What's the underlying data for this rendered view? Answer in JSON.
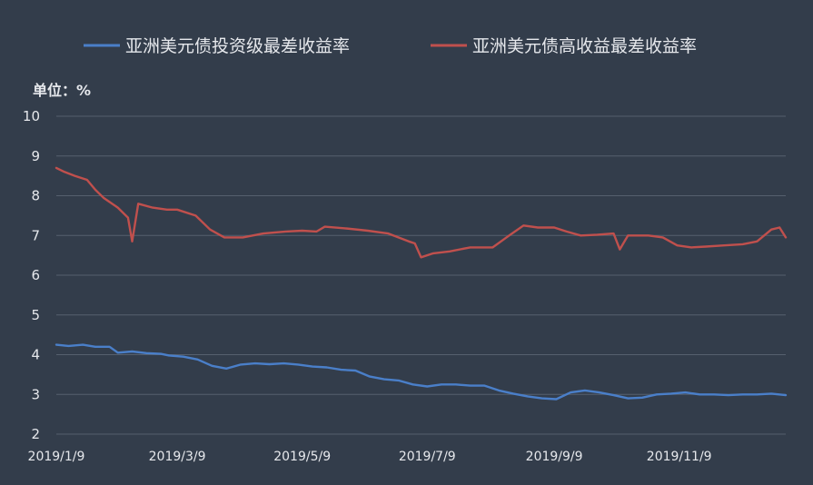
{
  "chart_data": {
    "type": "line",
    "unit_label": "单位：%",
    "ylim": [
      2,
      10
    ],
    "y_ticks": [
      2,
      3,
      4,
      5,
      6,
      7,
      8,
      9,
      10
    ],
    "x_range": [
      "2019-01-09",
      "2019-12-31"
    ],
    "x_ticks": [
      {
        "date": "2019-01-09",
        "label": "2019/1/9"
      },
      {
        "date": "2019-03-09",
        "label": "2019/3/9"
      },
      {
        "date": "2019-05-09",
        "label": "2019/5/9"
      },
      {
        "date": "2019-07-09",
        "label": "2019/7/9"
      },
      {
        "date": "2019-09-09",
        "label": "2019/9/9"
      },
      {
        "date": "2019-11-09",
        "label": "2019/11/9"
      }
    ],
    "grid": true,
    "legend_position": "top",
    "series": [
      {
        "name": "亚洲美元债投资级最差收益率",
        "color": "#4a7fc9",
        "points": [
          [
            "2019-01-09",
            4.25
          ],
          [
            "2019-01-15",
            4.22
          ],
          [
            "2019-01-22",
            4.25
          ],
          [
            "2019-01-28",
            4.2
          ],
          [
            "2019-02-04",
            4.2
          ],
          [
            "2019-02-08",
            4.05
          ],
          [
            "2019-02-15",
            4.08
          ],
          [
            "2019-02-22",
            4.04
          ],
          [
            "2019-03-01",
            4.02
          ],
          [
            "2019-03-05",
            3.98
          ],
          [
            "2019-03-12",
            3.95
          ],
          [
            "2019-03-19",
            3.88
          ],
          [
            "2019-03-26",
            3.72
          ],
          [
            "2019-04-02",
            3.65
          ],
          [
            "2019-04-09",
            3.75
          ],
          [
            "2019-04-16",
            3.78
          ],
          [
            "2019-04-23",
            3.76
          ],
          [
            "2019-04-30",
            3.78
          ],
          [
            "2019-05-07",
            3.75
          ],
          [
            "2019-05-14",
            3.7
          ],
          [
            "2019-05-21",
            3.68
          ],
          [
            "2019-05-28",
            3.62
          ],
          [
            "2019-06-04",
            3.6
          ],
          [
            "2019-06-11",
            3.45
          ],
          [
            "2019-06-18",
            3.38
          ],
          [
            "2019-06-25",
            3.35
          ],
          [
            "2019-07-02",
            3.25
          ],
          [
            "2019-07-09",
            3.2
          ],
          [
            "2019-07-16",
            3.25
          ],
          [
            "2019-07-23",
            3.25
          ],
          [
            "2019-07-30",
            3.22
          ],
          [
            "2019-08-06",
            3.22
          ],
          [
            "2019-08-13",
            3.1
          ],
          [
            "2019-08-20",
            3.02
          ],
          [
            "2019-08-27",
            2.95
          ],
          [
            "2019-09-03",
            2.9
          ],
          [
            "2019-09-10",
            2.88
          ],
          [
            "2019-09-17",
            3.05
          ],
          [
            "2019-09-24",
            3.1
          ],
          [
            "2019-10-01",
            3.05
          ],
          [
            "2019-10-08",
            2.98
          ],
          [
            "2019-10-15",
            2.9
          ],
          [
            "2019-10-22",
            2.92
          ],
          [
            "2019-10-29",
            3.0
          ],
          [
            "2019-11-05",
            3.02
          ],
          [
            "2019-11-12",
            3.05
          ],
          [
            "2019-11-19",
            3.0
          ],
          [
            "2019-11-26",
            3.0
          ],
          [
            "2019-12-03",
            2.98
          ],
          [
            "2019-12-10",
            3.0
          ],
          [
            "2019-12-17",
            3.0
          ],
          [
            "2019-12-24",
            3.02
          ],
          [
            "2019-12-31",
            2.98
          ]
        ]
      },
      {
        "name": "亚洲美元债高收益最差收益率",
        "color": "#c0504d",
        "points": [
          [
            "2019-01-09",
            8.7
          ],
          [
            "2019-01-13",
            8.6
          ],
          [
            "2019-01-18",
            8.5
          ],
          [
            "2019-01-24",
            8.4
          ],
          [
            "2019-01-28",
            8.15
          ],
          [
            "2019-02-01",
            7.95
          ],
          [
            "2019-02-08",
            7.7
          ],
          [
            "2019-02-13",
            7.45
          ],
          [
            "2019-02-15",
            6.85
          ],
          [
            "2019-02-18",
            7.8
          ],
          [
            "2019-02-25",
            7.7
          ],
          [
            "2019-03-04",
            7.65
          ],
          [
            "2019-03-09",
            7.65
          ],
          [
            "2019-03-18",
            7.5
          ],
          [
            "2019-03-25",
            7.15
          ],
          [
            "2019-04-01",
            6.95
          ],
          [
            "2019-04-10",
            6.95
          ],
          [
            "2019-04-20",
            7.05
          ],
          [
            "2019-05-01",
            7.1
          ],
          [
            "2019-05-09",
            7.12
          ],
          [
            "2019-05-16",
            7.1
          ],
          [
            "2019-05-20",
            7.22
          ],
          [
            "2019-05-30",
            7.18
          ],
          [
            "2019-06-10",
            7.12
          ],
          [
            "2019-06-20",
            7.05
          ],
          [
            "2019-06-30",
            6.85
          ],
          [
            "2019-07-03",
            6.8
          ],
          [
            "2019-07-06",
            6.45
          ],
          [
            "2019-07-12",
            6.55
          ],
          [
            "2019-07-20",
            6.6
          ],
          [
            "2019-07-30",
            6.7
          ],
          [
            "2019-08-10",
            6.7
          ],
          [
            "2019-08-18",
            7.0
          ],
          [
            "2019-08-25",
            7.25
          ],
          [
            "2019-09-01",
            7.2
          ],
          [
            "2019-09-09",
            7.2
          ],
          [
            "2019-09-15",
            7.1
          ],
          [
            "2019-09-22",
            7.0
          ],
          [
            "2019-09-30",
            7.02
          ],
          [
            "2019-10-08",
            7.05
          ],
          [
            "2019-10-11",
            6.65
          ],
          [
            "2019-10-15",
            7.0
          ],
          [
            "2019-10-25",
            7.0
          ],
          [
            "2019-11-01",
            6.95
          ],
          [
            "2019-11-08",
            6.75
          ],
          [
            "2019-11-15",
            6.7
          ],
          [
            "2019-11-22",
            6.72
          ],
          [
            "2019-12-01",
            6.75
          ],
          [
            "2019-12-10",
            6.78
          ],
          [
            "2019-12-17",
            6.85
          ],
          [
            "2019-12-24",
            7.15
          ],
          [
            "2019-12-28",
            7.2
          ],
          [
            "2019-12-31",
            6.95
          ]
        ]
      }
    ]
  }
}
